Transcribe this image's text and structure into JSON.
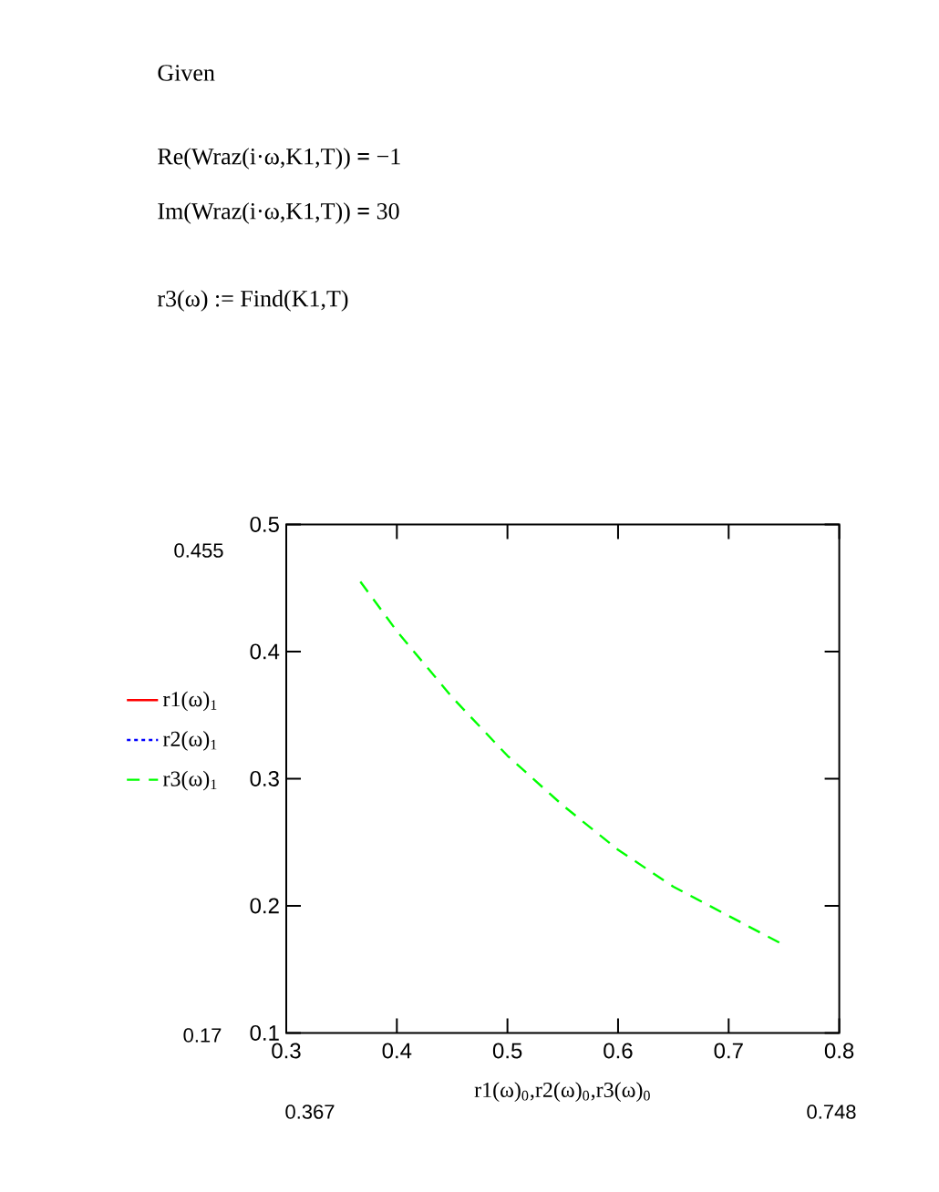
{
  "chart_data": {
    "type": "line",
    "annotations": [
      "Given",
      "Re(Wraz(i·ω,K1,T)) **=** −1",
      "Im(Wraz(i·ω,K1,T)) **=** 30",
      "r3(ω) := Find(K1,T)",
      "0.455",
      "0.17",
      "0.367",
      "0.748"
    ],
    "xlabel": "r1(ω)$_{0}$,r2(ω)$_{0}$,r3(ω)$_{0}$",
    "x": [
      0.367,
      0.4,
      0.45,
      0.5,
      0.55,
      0.6,
      0.65,
      0.7,
      0.748
    ],
    "series": [
      {
        "name": "r1(ω)$_{1}$",
        "color": "#ff0000",
        "line_style": "solid",
        "values": [
          null,
          null,
          null,
          null,
          null,
          null,
          null,
          null,
          null
        ]
      },
      {
        "name": "r2(ω)$_{1}$",
        "color": "#0000ff",
        "line_style": "dotted",
        "values": [
          null,
          null,
          null,
          null,
          null,
          null,
          null,
          null,
          null
        ]
      },
      {
        "name": "r3(ω)$_{1}$",
        "color": "#00ff00",
        "line_style": "dashed",
        "values": [
          0.455,
          0.416,
          0.364,
          0.318,
          0.279,
          0.244,
          0.215,
          0.192,
          0.17
        ]
      }
    ],
    "xlim": [
      0.3,
      0.8
    ],
    "ylim": [
      0.1,
      0.5
    ],
    "xticks": [
      0.3,
      0.4,
      0.5,
      0.6,
      0.7,
      0.8
    ],
    "yticks": [
      0.1,
      0.2,
      0.3,
      0.4,
      0.5
    ],
    "legend": "left",
    "marker": "none"
  }
}
